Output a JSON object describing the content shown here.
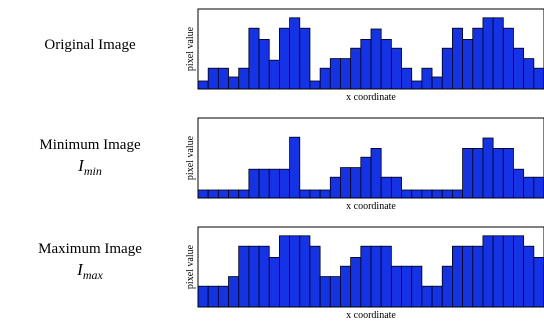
{
  "labels": {
    "original": {
      "title": "Original Image",
      "symbol": "",
      "sub": ""
    },
    "minimum": {
      "title": "Minimum Image",
      "symbol": "I",
      "sub": "min"
    },
    "maximum": {
      "title": "Maximum Image",
      "symbol": "I",
      "sub": "max"
    }
  },
  "bar_color": "#1432e6",
  "chart_data": [
    {
      "type": "bar",
      "title": "",
      "xlabel": "x coordinate",
      "ylabel": "pixel value",
      "ylim": [
        0,
        10
      ],
      "grid": false,
      "values": [
        1,
        2.6,
        2.6,
        1.5,
        2.6,
        7.6,
        6.2,
        3.6,
        7.6,
        8.9,
        7.6,
        1,
        2.6,
        3.8,
        3.8,
        5.1,
        6.2,
        7.5,
        6.2,
        5.1,
        2.6,
        1,
        2.6,
        1.5,
        5.1,
        7.6,
        6.2,
        7.6,
        8.9,
        8.9,
        7.6,
        5.1,
        3.8,
        2.6
      ]
    },
    {
      "type": "bar",
      "title": "",
      "xlabel": "x coordinate",
      "ylabel": "pixel value",
      "ylim": [
        0,
        10
      ],
      "grid": false,
      "values": [
        1,
        1,
        1,
        1,
        1,
        3.6,
        3.6,
        3.6,
        3.6,
        7.6,
        1,
        1,
        1,
        2.6,
        3.8,
        3.8,
        5.1,
        6.2,
        2.6,
        2.6,
        1,
        1,
        1,
        1,
        1,
        1,
        6.2,
        6.2,
        7.5,
        6.2,
        6.2,
        3.6,
        2.6,
        2.6
      ]
    },
    {
      "type": "bar",
      "title": "",
      "xlabel": "x coordinate",
      "ylabel": "pixel value",
      "ylim": [
        0,
        10
      ],
      "grid": false,
      "values": [
        2.6,
        2.6,
        2.6,
        3.8,
        7.6,
        7.6,
        7.6,
        6.2,
        8.9,
        8.9,
        8.9,
        7.6,
        3.8,
        3.8,
        5.1,
        6.2,
        7.6,
        7.6,
        7.6,
        5.1,
        5.1,
        5.1,
        2.6,
        2.6,
        5.1,
        7.6,
        7.6,
        7.6,
        8.9,
        8.9,
        8.9,
        8.9,
        7.6,
        6.2
      ]
    }
  ]
}
